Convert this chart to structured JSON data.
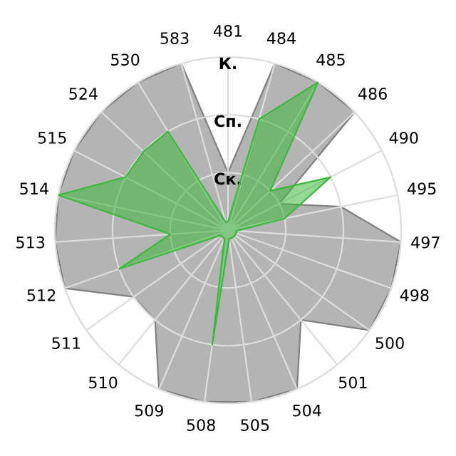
{
  "chart_data": {
    "type": "radar",
    "categories": [
      "481",
      "484",
      "485",
      "486",
      "490",
      "495",
      "497",
      "498",
      "500",
      "501",
      "504",
      "505",
      "508",
      "509",
      "510",
      "511",
      "512",
      "513",
      "514",
      "515",
      "524",
      "530",
      "583"
    ],
    "series": [
      {
        "color": "#b4b4b4",
        "values": [
          1,
          3,
          3,
          3,
          1,
          2,
          3,
          3,
          3,
          2,
          3,
          3,
          3,
          3,
          2,
          2,
          3,
          3,
          3,
          3,
          3,
          3,
          3
        ]
      },
      {
        "color": "#3cb83c",
        "values": [
          0.15,
          2,
          3,
          1,
          2,
          1,
          0.15,
          0.15,
          0.15,
          0.15,
          0.15,
          0.15,
          2,
          0.15,
          0.15,
          0.15,
          2,
          1,
          3,
          2,
          2,
          2,
          0.15
        ]
      }
    ],
    "ylim": [
      0,
      3
    ],
    "yticks": [
      {
        "value": 1,
        "label": "Ск."
      },
      {
        "value": 2,
        "label": "Сп."
      },
      {
        "value": 3,
        "label": "К."
      }
    ],
    "grid": true
  }
}
